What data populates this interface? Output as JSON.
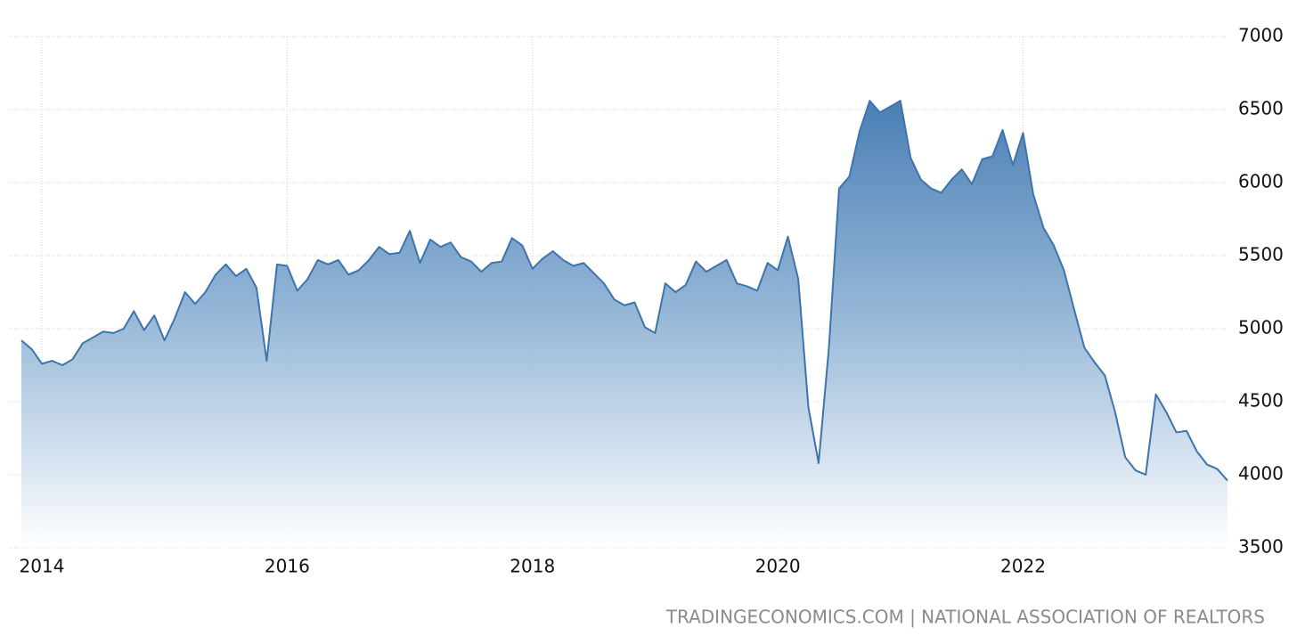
{
  "chart_data": {
    "type": "area",
    "source": "TRADINGECONOMICS.COM | NATIONAL ASSOCIATION OF REALTORS",
    "x": [
      2013.833,
      2013.917,
      2014,
      2014.083,
      2014.167,
      2014.25,
      2014.333,
      2014.417,
      2014.5,
      2014.583,
      2014.667,
      2014.75,
      2014.833,
      2014.917,
      2015,
      2015.083,
      2015.167,
      2015.25,
      2015.333,
      2015.417,
      2015.5,
      2015.583,
      2015.667,
      2015.75,
      2015.833,
      2015.917,
      2016,
      2016.083,
      2016.167,
      2016.25,
      2016.333,
      2016.417,
      2016.5,
      2016.583,
      2016.667,
      2016.75,
      2016.833,
      2016.917,
      2017,
      2017.083,
      2017.167,
      2017.25,
      2017.333,
      2017.417,
      2017.5,
      2017.583,
      2017.667,
      2017.75,
      2017.833,
      2017.917,
      2018,
      2018.083,
      2018.167,
      2018.25,
      2018.333,
      2018.417,
      2018.5,
      2018.583,
      2018.667,
      2018.75,
      2018.833,
      2018.917,
      2019,
      2019.083,
      2019.167,
      2019.25,
      2019.333,
      2019.417,
      2019.5,
      2019.583,
      2019.667,
      2019.75,
      2019.833,
      2019.917,
      2020,
      2020.083,
      2020.167,
      2020.25,
      2020.333,
      2020.417,
      2020.5,
      2020.583,
      2020.667,
      2020.75,
      2020.833,
      2020.917,
      2021,
      2021.083,
      2021.167,
      2021.25,
      2021.333,
      2021.417,
      2021.5,
      2021.583,
      2021.667,
      2021.75,
      2021.833,
      2021.917,
      2022,
      2022.083,
      2022.167,
      2022.25,
      2022.333,
      2022.417,
      2022.5,
      2022.583,
      2022.667,
      2022.75,
      2022.833,
      2022.917,
      2023,
      2023.083,
      2023.167,
      2023.25,
      2023.333,
      2023.417,
      2023.5,
      2023.583,
      2023.667
    ],
    "series": [
      {
        "color": "#3d74ab",
        "values": [
          4920,
          4860,
          4760,
          4780,
          4750,
          4790,
          4900,
          4940,
          4980,
          4970,
          5000,
          5120,
          4990,
          5090,
          4920,
          5070,
          5250,
          5170,
          5250,
          5370,
          5440,
          5360,
          5410,
          5280,
          4780,
          5440,
          5430,
          5260,
          5340,
          5470,
          5440,
          5470,
          5370,
          5400,
          5470,
          5560,
          5510,
          5520,
          5670,
          5450,
          5610,
          5560,
          5590,
          5490,
          5460,
          5390,
          5450,
          5460,
          5620,
          5570,
          5410,
          5480,
          5530,
          5470,
          5430,
          5450,
          5380,
          5310,
          5200,
          5160,
          5180,
          5010,
          4970,
          5310,
          5250,
          5300,
          5460,
          5390,
          5430,
          5470,
          5310,
          5290,
          5260,
          5450,
          5400,
          5630,
          5340,
          4460,
          4080,
          4870,
          5960,
          6040,
          6350,
          6560,
          6480,
          6520,
          6560,
          6170,
          6020,
          5960,
          5930,
          6020,
          6090,
          5990,
          6160,
          6180,
          6360,
          6120,
          6340,
          5920,
          5690,
          5570,
          5400,
          5130,
          4870,
          4770,
          4680,
          4430,
          4120,
          4030,
          4000,
          4550,
          4430,
          4290,
          4300,
          4160,
          4070,
          4040,
          3960
        ]
      }
    ],
    "xlim": [
      2013.833,
      2023.667
    ],
    "xticks": [
      2014,
      2016,
      2018,
      2020,
      2022
    ],
    "ylim": [
      3500,
      7000
    ],
    "yticks": [
      3500,
      4000,
      4500,
      5000,
      5500,
      6000,
      6500,
      7000
    ],
    "grid": true
  }
}
